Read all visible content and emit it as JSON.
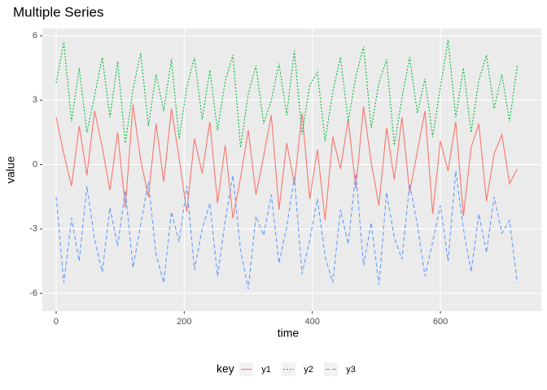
{
  "chart_data": {
    "type": "line",
    "title": "Multiple Series",
    "x_label": "time",
    "y_label": "value",
    "legend_title": "key",
    "legend_position": "bottom",
    "grid": true,
    "x": [
      0,
      12,
      24,
      36,
      48,
      60,
      72,
      84,
      96,
      108,
      120,
      132,
      144,
      156,
      168,
      180,
      192,
      204,
      216,
      228,
      240,
      252,
      264,
      276,
      288,
      300,
      312,
      324,
      336,
      348,
      360,
      372,
      384,
      396,
      408,
      420,
      432,
      444,
      456,
      468,
      480,
      492,
      504,
      516,
      528,
      540,
      552,
      564,
      576,
      588,
      600,
      612,
      624,
      636,
      648,
      660,
      672,
      684,
      696,
      708,
      720
    ],
    "xlim": [
      -21.6,
      757.6
    ],
    "xticks": [
      0,
      200,
      400,
      600
    ],
    "ylim": [
      -6.83,
      6.34
    ],
    "yticks": [
      -6,
      -3,
      0,
      3,
      6
    ],
    "series": [
      {
        "name": "y1",
        "color": "#F8766D",
        "dash": "none",
        "values": [
          2.2,
          0.5,
          -1.0,
          1.8,
          -0.5,
          2.5,
          0.8,
          -1.2,
          1.5,
          -2.0,
          2.8,
          0.2,
          -1.5,
          1.9,
          -0.8,
          2.6,
          0.3,
          -2.2,
          1.2,
          -0.4,
          2.0,
          -1.8,
          0.9,
          -2.5,
          -0.6,
          1.6,
          -1.4,
          0.4,
          2.3,
          -2.1,
          1.0,
          -0.9,
          2.4,
          -1.6,
          0.7,
          -2.6,
          1.3,
          -0.2,
          2.1,
          -1.1,
          2.7,
          0.1,
          -1.9,
          1.7,
          -0.7,
          2.2,
          -1.3,
          0.6,
          2.5,
          -2.3,
          1.1,
          -0.3,
          2.0,
          -2.4,
          0.8,
          1.9,
          -1.7,
          0.5,
          1.4,
          -0.9,
          -0.2
        ]
      },
      {
        "name": "y2",
        "color": "#00BA38",
        "dash": "2 2",
        "values": [
          3.8,
          5.7,
          2.0,
          4.5,
          1.5,
          3.2,
          5.0,
          2.2,
          4.8,
          1.0,
          3.5,
          5.2,
          1.8,
          4.2,
          2.5,
          4.9,
          1.2,
          3.6,
          5.0,
          2.1,
          4.4,
          1.6,
          3.9,
          5.1,
          0.8,
          3.3,
          4.6,
          1.9,
          3.0,
          4.7,
          2.3,
          5.3,
          1.4,
          3.7,
          4.3,
          1.1,
          3.4,
          5.0,
          2.0,
          4.1,
          5.5,
          1.7,
          3.8,
          4.9,
          0.9,
          3.1,
          5.0,
          2.4,
          4.0,
          1.3,
          3.6,
          5.8,
          2.2,
          4.5,
          1.5,
          3.9,
          5.1,
          2.6,
          4.2,
          2.0,
          4.6
        ]
      },
      {
        "name": "y3",
        "color": "#619CFF",
        "dash": "5 3",
        "values": [
          -1.5,
          -5.5,
          -2.5,
          -4.5,
          -1.0,
          -3.5,
          -5.0,
          -2.0,
          -3.8,
          -1.2,
          -4.8,
          -2.8,
          -0.8,
          -4.2,
          -5.5,
          -2.2,
          -3.6,
          -1.0,
          -4.9,
          -3.0,
          -1.8,
          -5.2,
          -2.6,
          -0.5,
          -4.0,
          -5.8,
          -2.4,
          -3.3,
          -1.4,
          -4.6,
          -2.9,
          -0.6,
          -5.1,
          -3.5,
          -1.6,
          -4.3,
          -5.5,
          -2.1,
          -3.7,
          -0.4,
          -4.7,
          -2.7,
          -5.6,
          -1.3,
          -3.4,
          -4.4,
          -0.9,
          -2.8,
          -5.2,
          -3.6,
          -1.9,
          -4.5,
          -0.3,
          -3.0,
          -5.0,
          -2.3,
          -4.1,
          -1.5,
          -3.2,
          -2.6,
          -5.5
        ]
      }
    ]
  }
}
